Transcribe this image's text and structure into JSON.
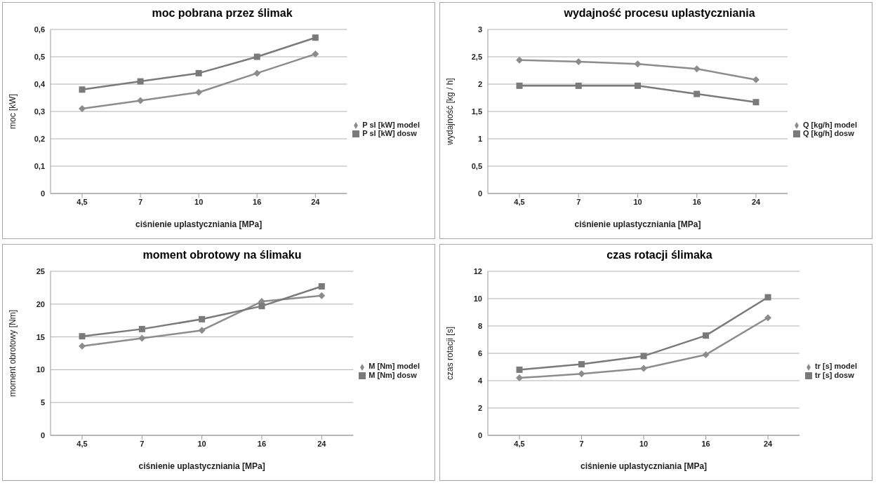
{
  "chart_data": [
    {
      "type": "line",
      "title": "moc pobrana przez ślimak",
      "xlabel": "ciśnienie uplastyczniania  [MPa]",
      "ylabel": "moc  [kW]",
      "categories": [
        "4,5",
        "7",
        "10",
        "16",
        "24"
      ],
      "series": [
        {
          "name": "P sl [kW] model",
          "color": "#8c8c8c",
          "marker": "diamond",
          "values": [
            0.31,
            0.34,
            0.37,
            0.44,
            0.51
          ]
        },
        {
          "name": "P sl [kW] dosw",
          "color": "#7a7a7a",
          "marker": "square",
          "values": [
            0.38,
            0.41,
            0.44,
            0.5,
            0.57
          ]
        }
      ],
      "ylim": [
        0,
        0.6
      ],
      "yticks": [
        0,
        {
          "value": 0.1,
          "label": "0,1"
        },
        {
          "value": 0.2,
          "label": "0,2"
        },
        {
          "value": 0.3,
          "label": "0,3"
        },
        {
          "value": 0.4,
          "label": "0,4"
        },
        {
          "value": 0.5,
          "label": "0,5"
        },
        {
          "value": 0.6,
          "label": "0,6"
        }
      ],
      "grid": "y",
      "legend": "right"
    },
    {
      "type": "line",
      "title": "wydajność procesu uplastyczniania",
      "xlabel": "ciśnienie uplastyczniania  [MPa]",
      "ylabel": "wydajność   [kg / h]",
      "categories": [
        "4,5",
        "7",
        "10",
        "16",
        "24"
      ],
      "series": [
        {
          "name": "Q [kg/h] model",
          "color": "#8c8c8c",
          "marker": "diamond",
          "values": [
            2.44,
            2.41,
            2.37,
            2.28,
            2.08
          ]
        },
        {
          "name": "Q [kg/h] dosw",
          "color": "#7a7a7a",
          "marker": "square",
          "values": [
            1.97,
            1.97,
            1.97,
            1.82,
            1.67
          ]
        }
      ],
      "ylim": [
        0,
        3
      ],
      "yticks": [
        0,
        {
          "value": 0.5,
          "label": "0,5"
        },
        1,
        {
          "value": 1.5,
          "label": "1,5"
        },
        2,
        {
          "value": 2.5,
          "label": "2,5"
        },
        3
      ],
      "grid": "y",
      "legend": "right"
    },
    {
      "type": "line",
      "title": "moment obrotowy na ślimaku",
      "xlabel": "ciśnienie uplastyczniania  [MPa]",
      "ylabel": "moment obrotowy  [Nm]",
      "categories": [
        "4,5",
        "7",
        "10",
        "16",
        "24"
      ],
      "series": [
        {
          "name": "M [Nm] model",
          "color": "#8c8c8c",
          "marker": "diamond",
          "values": [
            13.6,
            14.8,
            16.0,
            20.4,
            21.3
          ]
        },
        {
          "name": "M [Nm] dosw",
          "color": "#7a7a7a",
          "marker": "square",
          "values": [
            15.1,
            16.2,
            17.7,
            19.7,
            22.7
          ]
        }
      ],
      "ylim": [
        0,
        25
      ],
      "yticks": [
        0,
        5,
        10,
        15,
        20,
        25
      ],
      "grid": "y",
      "legend": "right"
    },
    {
      "type": "line",
      "title": "czas rotacji ślimaka",
      "xlabel": "ciśnienie uplastyczniania  [MPa]",
      "ylabel": "czas rotacji  [s]",
      "categories": [
        "4,5",
        "7",
        "10",
        "16",
        "24"
      ],
      "series": [
        {
          "name": "tr [s] model",
          "color": "#8c8c8c",
          "marker": "diamond",
          "values": [
            4.2,
            4.5,
            4.9,
            5.9,
            8.6
          ]
        },
        {
          "name": "tr [s] dosw",
          "color": "#7a7a7a",
          "marker": "square",
          "values": [
            4.8,
            5.2,
            5.8,
            7.3,
            10.1
          ]
        }
      ],
      "ylim": [
        0,
        12
      ],
      "yticks": [
        0,
        2,
        4,
        6,
        8,
        10,
        12
      ],
      "grid": "y",
      "legend": "right"
    }
  ]
}
